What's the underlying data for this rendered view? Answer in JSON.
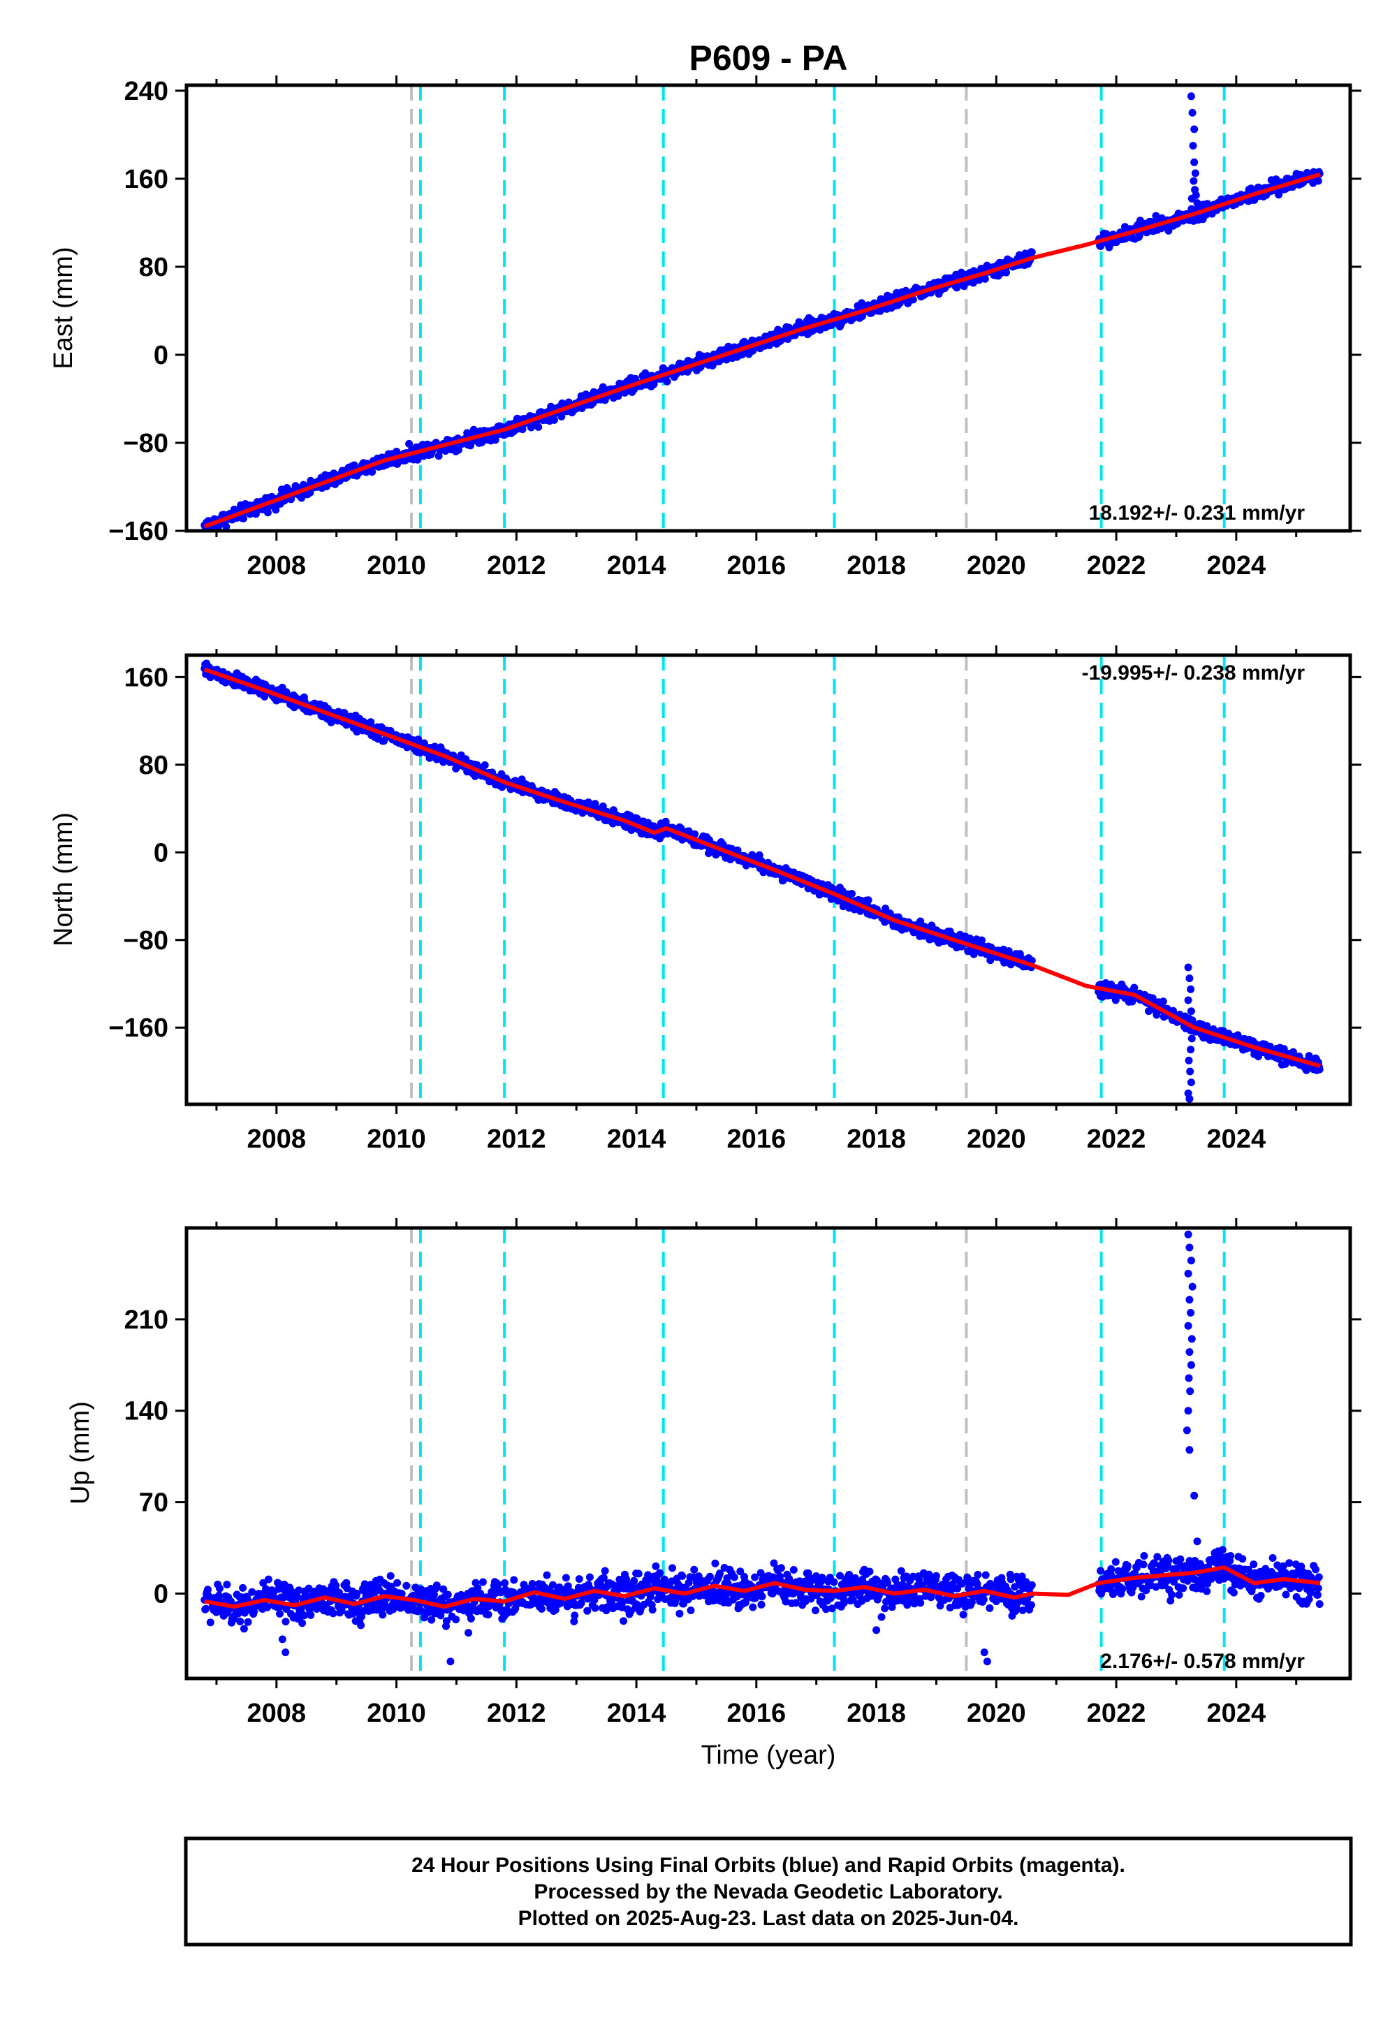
{
  "page_title": "P609 - PA",
  "footer": {
    "line1": "24 Hour Positions Using Final Orbits (blue) and Rapid Orbits (magenta).",
    "line2": "Processed by the Nevada Geodetic Laboratory.",
    "line3": "Plotted on 2025-Aug-23. Last data on 2025-Jun-04."
  },
  "colors": {
    "observations": "#0000ff",
    "model_fit": "#ff0000",
    "equipment_change_lines": "#00e5ee",
    "other_event_lines": "#c0c0c0"
  },
  "chart_data": [
    {
      "type": "scatter",
      "ylabel": "East (mm)",
      "xlabel": "",
      "xlim": [
        2006.5,
        2025.9
      ],
      "ylim": [
        -160,
        245
      ],
      "yticks": [
        -160,
        -80,
        0,
        80,
        160,
        240
      ],
      "xticks": [
        2008,
        2010,
        2012,
        2014,
        2016,
        2018,
        2020,
        2022,
        2024
      ],
      "rate": "18.192+/- 0.231 mm/yr",
      "rate_position": "bottom-right",
      "vlines_cyan": [
        2010.4,
        2011.8,
        2014.45,
        2017.3,
        2021.75,
        2023.8
      ],
      "vlines_gray": [
        2010.25,
        2019.5
      ],
      "trend": [
        [
          2006.8,
          -156
        ],
        [
          2007.8,
          -136
        ],
        [
          2008.8,
          -116
        ],
        [
          2009.8,
          -96
        ],
        [
          2010.8,
          -82
        ],
        [
          2011.8,
          -68
        ],
        [
          2012.8,
          -49
        ],
        [
          2013.8,
          -30
        ],
        [
          2014.8,
          -12
        ],
        [
          2015.8,
          6
        ],
        [
          2016.8,
          24
        ],
        [
          2017.8,
          40
        ],
        [
          2018.8,
          58
        ],
        [
          2019.8,
          74
        ],
        [
          2020.6,
          88
        ],
        [
          2021.5,
          100
        ],
        [
          2022.3,
          112
        ],
        [
          2023.3,
          128
        ],
        [
          2024.3,
          146
        ],
        [
          2025.4,
          164
        ]
      ],
      "gaps": [
        [
          2020.6,
          2021.7
        ]
      ],
      "noise": 4,
      "outliers": [
        [
          2023.25,
          235
        ],
        [
          2023.27,
          220
        ],
        [
          2023.3,
          205
        ],
        [
          2023.28,
          190
        ],
        [
          2023.3,
          175
        ],
        [
          2023.32,
          165
        ],
        [
          2023.29,
          158
        ],
        [
          2023.31,
          150
        ],
        [
          2023.33,
          145
        ],
        [
          2023.26,
          142
        ],
        [
          2023.0,
          125
        ],
        [
          2022.4,
          122
        ],
        [
          2023.35,
          138
        ]
      ]
    },
    {
      "type": "scatter",
      "ylabel": "North (mm)",
      "xlabel": "",
      "xlim": [
        2006.5,
        2025.9
      ],
      "ylim": [
        -230,
        180
      ],
      "yticks": [
        -160,
        -80,
        0,
        80,
        160
      ],
      "xticks": [
        2008,
        2010,
        2012,
        2014,
        2016,
        2018,
        2020,
        2022,
        2024
      ],
      "rate": "-19.995+/- 0.238 mm/yr",
      "rate_position": "top-right",
      "vlines_cyan": [
        2010.4,
        2011.8,
        2014.45,
        2017.3,
        2021.75,
        2023.8
      ],
      "vlines_gray": [
        2010.25,
        2019.5
      ],
      "trend": [
        [
          2006.8,
          167
        ],
        [
          2007.8,
          148
        ],
        [
          2008.8,
          128
        ],
        [
          2009.8,
          108
        ],
        [
          2010.8,
          88
        ],
        [
          2011.8,
          64
        ],
        [
          2012.8,
          46
        ],
        [
          2013.8,
          29
        ],
        [
          2014.3,
          18
        ],
        [
          2014.5,
          22
        ],
        [
          2015.3,
          5
        ],
        [
          2016.3,
          -16
        ],
        [
          2017.3,
          -38
        ],
        [
          2018.3,
          -62
        ],
        [
          2019.3,
          -80
        ],
        [
          2020.6,
          -103
        ],
        [
          2021.5,
          -122
        ],
        [
          2022.3,
          -130
        ],
        [
          2023.3,
          -160
        ],
        [
          2024.3,
          -178
        ],
        [
          2025.4,
          -195
        ]
      ],
      "gaps": [
        [
          2020.6,
          2021.7
        ]
      ],
      "noise": 4,
      "outliers": [
        [
          2023.2,
          -105
        ],
        [
          2023.22,
          -115
        ],
        [
          2023.24,
          -125
        ],
        [
          2023.2,
          -135
        ],
        [
          2023.25,
          -145
        ],
        [
          2023.21,
          -190
        ],
        [
          2023.23,
          -200
        ],
        [
          2023.25,
          -210
        ],
        [
          2023.2,
          -220
        ],
        [
          2023.22,
          -225
        ],
        [
          2023.24,
          -180
        ],
        [
          2023.26,
          -170
        ]
      ]
    },
    {
      "type": "scatter",
      "ylabel": "Up (mm)",
      "xlabel": "Time (year)",
      "xlim": [
        2006.5,
        2025.9
      ],
      "ylim": [
        -65,
        280
      ],
      "yticks": [
        0,
        70,
        140,
        210
      ],
      "xticks": [
        2008,
        2010,
        2012,
        2014,
        2016,
        2018,
        2020,
        2022,
        2024
      ],
      "rate": "2.176+/- 0.578 mm/yr",
      "rate_position": "bottom-right",
      "vlines_cyan": [
        2010.4,
        2011.8,
        2014.45,
        2017.3,
        2021.75,
        2023.8
      ],
      "vlines_gray": [
        2010.25,
        2019.5
      ],
      "trend": [
        [
          2006.8,
          -6
        ],
        [
          2007.3,
          -10
        ],
        [
          2007.8,
          -5
        ],
        [
          2008.3,
          -9
        ],
        [
          2008.8,
          -3
        ],
        [
          2009.3,
          -8
        ],
        [
          2009.8,
          -2
        ],
        [
          2010.3,
          -5
        ],
        [
          2010.8,
          -10
        ],
        [
          2011.3,
          -4
        ],
        [
          2011.8,
          -6
        ],
        [
          2012.3,
          1
        ],
        [
          2012.8,
          -4
        ],
        [
          2013.3,
          2
        ],
        [
          2013.8,
          -2
        ],
        [
          2014.3,
          4
        ],
        [
          2014.8,
          0
        ],
        [
          2015.3,
          6
        ],
        [
          2015.8,
          2
        ],
        [
          2016.3,
          8
        ],
        [
          2016.8,
          3
        ],
        [
          2017.3,
          2
        ],
        [
          2017.8,
          5
        ],
        [
          2018.3,
          0
        ],
        [
          2018.8,
          3
        ],
        [
          2019.3,
          -2
        ],
        [
          2019.8,
          2
        ],
        [
          2020.3,
          -3
        ],
        [
          2020.6,
          0
        ],
        [
          2021.2,
          -1
        ],
        [
          2021.7,
          8
        ],
        [
          2022.3,
          12
        ],
        [
          2022.8,
          14
        ],
        [
          2023.3,
          16
        ],
        [
          2023.8,
          20
        ],
        [
          2024.3,
          8
        ],
        [
          2024.8,
          11
        ],
        [
          2025.4,
          8
        ]
      ],
      "gaps": [
        [
          2020.6,
          2021.7
        ]
      ],
      "noise": 9,
      "outliers": [
        [
          2008.1,
          -35
        ],
        [
          2008.15,
          -45
        ],
        [
          2010.9,
          -52
        ],
        [
          2019.8,
          -45
        ],
        [
          2019.85,
          -52
        ],
        [
          2018.0,
          -28
        ],
        [
          2011.2,
          -30
        ],
        [
          2023.2,
          275
        ],
        [
          2023.22,
          265
        ],
        [
          2023.25,
          255
        ],
        [
          2023.2,
          245
        ],
        [
          2023.27,
          235
        ],
        [
          2023.22,
          225
        ],
        [
          2023.24,
          215
        ],
        [
          2023.2,
          205
        ],
        [
          2023.26,
          195
        ],
        [
          2023.22,
          185
        ],
        [
          2023.25,
          175
        ],
        [
          2023.21,
          165
        ],
        [
          2023.23,
          155
        ],
        [
          2023.2,
          140
        ],
        [
          2023.18,
          125
        ],
        [
          2023.22,
          110
        ],
        [
          2023.3,
          75
        ],
        [
          2023.35,
          40
        ],
        [
          2023.0,
          25
        ]
      ]
    }
  ]
}
